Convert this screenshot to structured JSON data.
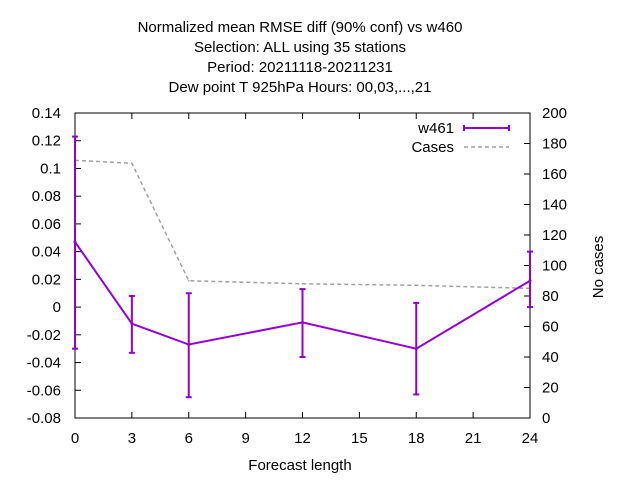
{
  "chart_data": {
    "type": "line",
    "title_lines": [
      "Normalized mean RMSE diff (90% conf) vs w460",
      "Selection: ALL using    35 stations",
      "Period: 20211118-20211231",
      "Dew point T 925hPa   Hours:  00,03,...,21"
    ],
    "xlabel": "Forecast length",
    "ylabel": "",
    "y2label": "No cases",
    "xlim": [
      0,
      24
    ],
    "ylim": [
      -0.08,
      0.14
    ],
    "y2lim": [
      0,
      200
    ],
    "x_ticks": [
      0,
      3,
      6,
      9,
      12,
      15,
      18,
      21,
      24
    ],
    "y_ticks": [
      -0.08,
      -0.06,
      -0.04,
      -0.02,
      0,
      0.02,
      0.04,
      0.06,
      0.08,
      0.1,
      0.12,
      0.14
    ],
    "y_tick_labels": [
      "-0.08",
      "-0.06",
      "-0.04",
      "-0.02",
      "0",
      "0.02",
      "0.04",
      "0.06",
      "0.08",
      "0.1",
      "0.12",
      "0.14"
    ],
    "y2_ticks": [
      0,
      20,
      40,
      60,
      80,
      100,
      120,
      140,
      160,
      180,
      200
    ],
    "series": [
      {
        "name": "w461",
        "axis": "y",
        "style": "errorbars",
        "color": "#9400d3",
        "x": [
          0,
          3,
          6,
          12,
          18,
          24
        ],
        "values": [
          0.047,
          -0.012,
          -0.027,
          -0.011,
          -0.03,
          0.019
        ],
        "err_low": [
          -0.03,
          -0.033,
          -0.065,
          -0.036,
          -0.063,
          0.0
        ],
        "err_high": [
          0.123,
          0.008,
          0.01,
          0.013,
          0.003,
          0.04
        ]
      },
      {
        "name": "Cases",
        "axis": "y2",
        "style": "dashed",
        "color": "#a0a0a0",
        "x": [
          0,
          3,
          6,
          12,
          18,
          24
        ],
        "values": [
          169,
          167,
          90,
          88,
          87,
          85
        ]
      }
    ],
    "legend_position": "top-right",
    "grid": false
  }
}
